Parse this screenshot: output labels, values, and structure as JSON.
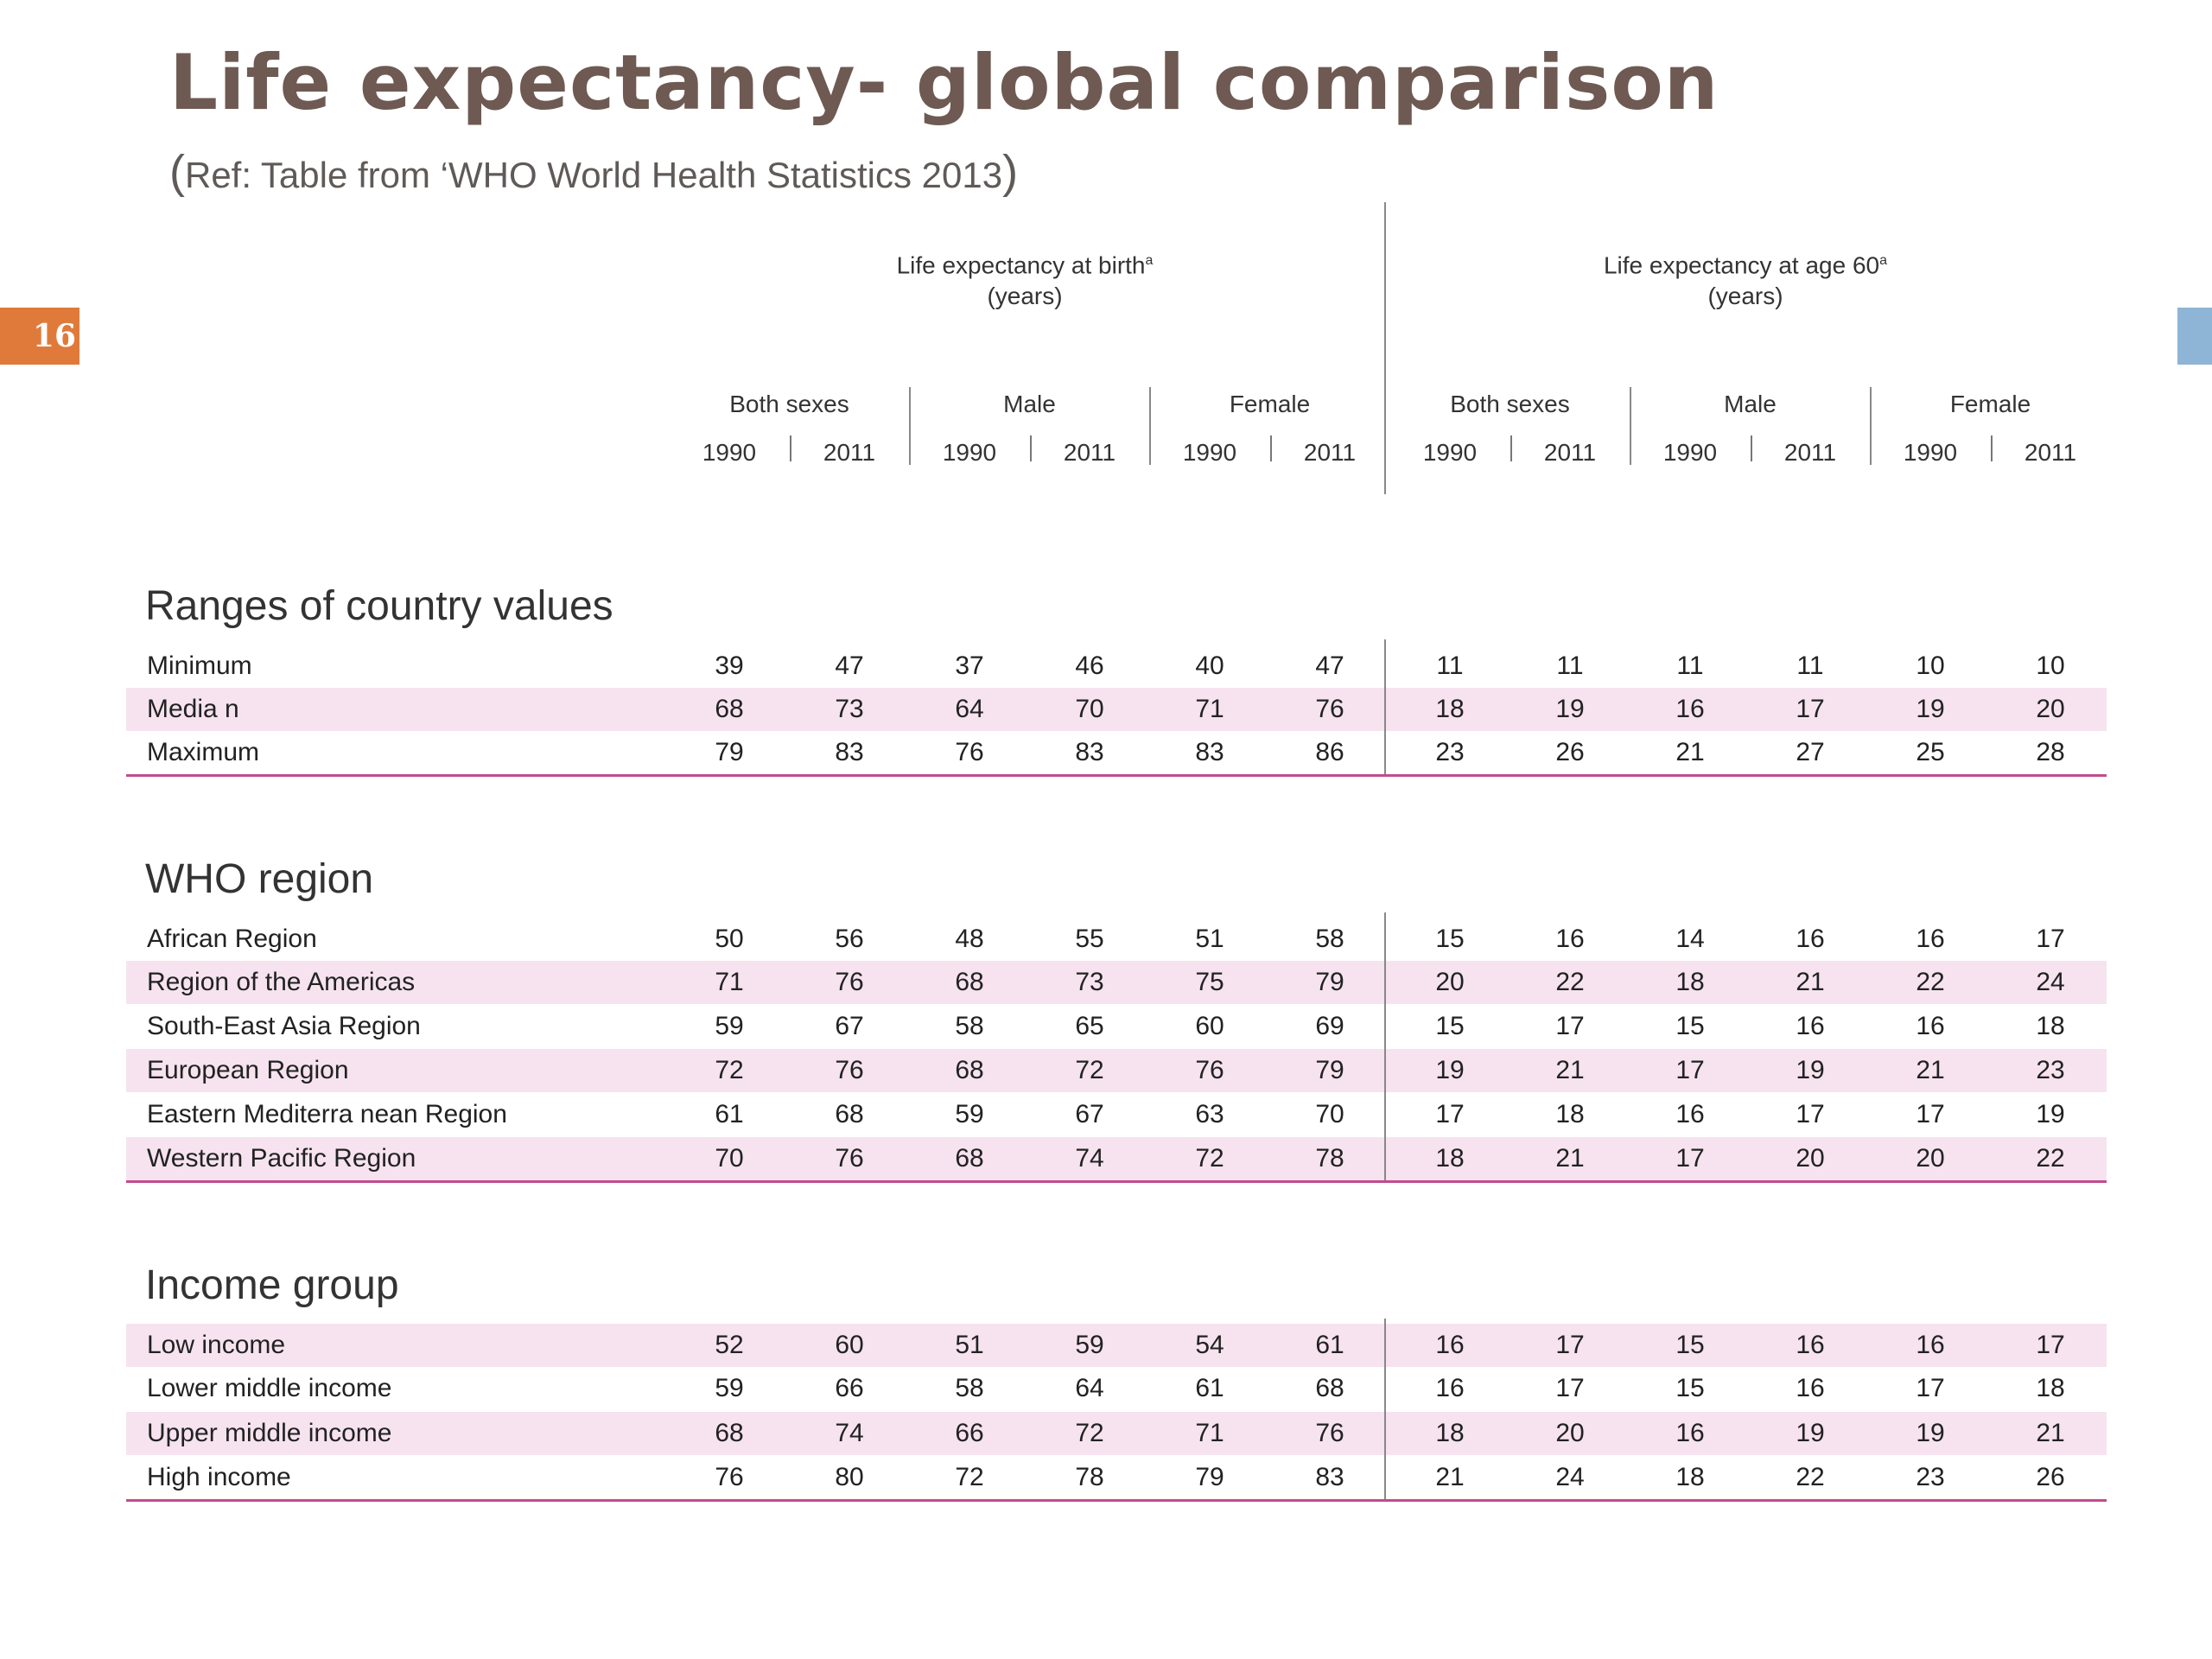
{
  "title": "Life expectancy- global comparison",
  "subtitle_open": "(",
  "subtitle_text": "Ref: Table from ‘WHO World Health Statistics 2013",
  "subtitle_close": ")",
  "page_number": "16",
  "headers": {
    "birth_line1": "Life expectancy at birth",
    "birth_line2": "(years)",
    "age60_line1": "Life expectancy at age 60",
    "age60_line2": "(years)",
    "superscript": "a",
    "groups": [
      "Both sexes",
      "Male",
      "Female",
      "Both sexes",
      "Male",
      "Female"
    ],
    "years": [
      "1990",
      "2011",
      "1990",
      "2011",
      "1990",
      "2011",
      "1990",
      "2011",
      "1990",
      "2011",
      "1990",
      "2011"
    ]
  },
  "sections": [
    {
      "title": "Ranges of country values",
      "rows": [
        {
          "label": "Minimum",
          "values": [
            "39",
            "47",
            "37",
            "46",
            "40",
            "47",
            "11",
            "11",
            "11",
            "11",
            "10",
            "10"
          ]
        },
        {
          "label": "Media n",
          "values": [
            "68",
            "73",
            "64",
            "70",
            "71",
            "76",
            "18",
            "19",
            "16",
            "17",
            "19",
            "20"
          ]
        },
        {
          "label": "Maximum",
          "values": [
            "79",
            "83",
            "76",
            "83",
            "83",
            "86",
            "23",
            "26",
            "21",
            "27",
            "25",
            "28"
          ]
        }
      ]
    },
    {
      "title": "WHO region",
      "rows": [
        {
          "label": "African Region",
          "values": [
            "50",
            "56",
            "48",
            "55",
            "51",
            "58",
            "15",
            "16",
            "14",
            "16",
            "16",
            "17"
          ]
        },
        {
          "label": "Region of the Americas",
          "values": [
            "71",
            "76",
            "68",
            "73",
            "75",
            "79",
            "20",
            "22",
            "18",
            "21",
            "22",
            "24"
          ]
        },
        {
          "label": "South-East Asia Region",
          "values": [
            "59",
            "67",
            "58",
            "65",
            "60",
            "69",
            "15",
            "17",
            "15",
            "16",
            "16",
            "18"
          ]
        },
        {
          "label": "European Region",
          "values": [
            "72",
            "76",
            "68",
            "72",
            "76",
            "79",
            "19",
            "21",
            "17",
            "19",
            "21",
            "23"
          ]
        },
        {
          "label": "Eastern Mediterra nean Region",
          "values": [
            "61",
            "68",
            "59",
            "67",
            "63",
            "70",
            "17",
            "18",
            "16",
            "17",
            "17",
            "19"
          ]
        },
        {
          "label": "Western Pacific Region",
          "values": [
            "70",
            "76",
            "68",
            "74",
            "72",
            "78",
            "18",
            "21",
            "17",
            "20",
            "20",
            "22"
          ]
        }
      ]
    },
    {
      "title": "Income group",
      "rows": [
        {
          "label": "Low income",
          "values": [
            "52",
            "60",
            "51",
            "59",
            "54",
            "61",
            "16",
            "17",
            "15",
            "16",
            "16",
            "17"
          ]
        },
        {
          "label": "Lower middle income",
          "values": [
            "59",
            "66",
            "58",
            "64",
            "61",
            "68",
            "16",
            "17",
            "15",
            "16",
            "17",
            "18"
          ]
        },
        {
          "label": "Upper middle income",
          "values": [
            "68",
            "74",
            "66",
            "72",
            "71",
            "76",
            "18",
            "20",
            "16",
            "19",
            "19",
            "21"
          ]
        },
        {
          "label": "High income",
          "values": [
            "76",
            "80",
            "72",
            "78",
            "79",
            "83",
            "21",
            "24",
            "18",
            "22",
            "23",
            "26"
          ]
        }
      ]
    }
  ]
}
